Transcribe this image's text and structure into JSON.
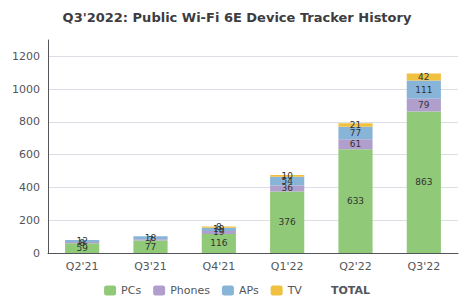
{
  "chart_data": {
    "type": "bar",
    "title": "Q3'2022: Public Wi-Fi 6E Device Tracker History",
    "categories": [
      "Q2'21",
      "Q3'21",
      "Q4'21",
      "Q1'22",
      "Q2'22",
      "Q3'22"
    ],
    "series": [
      {
        "name": "PCs",
        "color": "#90c978",
        "values": [
          59,
          77,
          116,
          376,
          633,
          863
        ]
      },
      {
        "name": "Phones",
        "color": "#b09fcc",
        "values": [
          8,
          7,
          19,
          36,
          61,
          79
        ]
      },
      {
        "name": "APs",
        "color": "#88b4d8",
        "values": [
          12,
          18,
          19,
          54,
          77,
          111
        ]
      },
      {
        "name": "TV",
        "color": "#f0c040",
        "values": [
          0,
          0,
          8,
          10,
          21,
          42
        ],
        "value_labels": [
          null,
          null,
          "8",
          "10",
          "21",
          "42"
        ]
      }
    ],
    "totals": [
      79,
      102,
      162,
      476,
      792,
      1095
    ],
    "totals_label": "TOTAL",
    "stacked": true,
    "data_labels": true,
    "ylim": [
      0,
      1300
    ],
    "yticks": [
      0,
      200,
      400,
      600,
      800,
      1000,
      1200
    ],
    "grid": true,
    "legend": "bottom"
  }
}
